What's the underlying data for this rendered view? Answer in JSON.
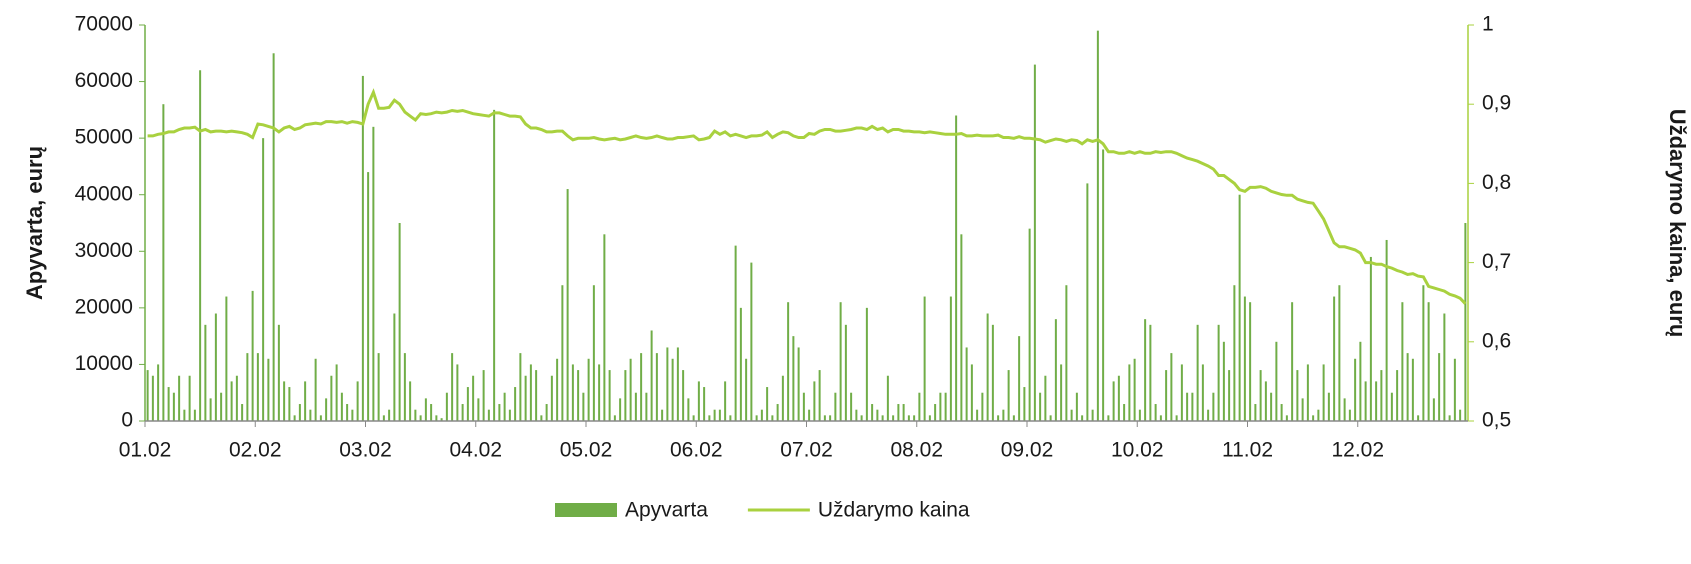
{
  "chart_data": {
    "type": "bar-line",
    "y_label": "Apyvarta, eurų",
    "y2_label": "Uždarymo kaina, eurų",
    "categories": [
      "01.02",
      null,
      null,
      null,
      null,
      null,
      null,
      null,
      null,
      null,
      null,
      null,
      null,
      null,
      null,
      null,
      null,
      null,
      null,
      null,
      null,
      "02.02",
      null,
      null,
      null,
      null,
      null,
      null,
      null,
      null,
      null,
      null,
      null,
      null,
      null,
      null,
      null,
      null,
      null,
      null,
      null,
      null,
      "03.02",
      null,
      null,
      null,
      null,
      null,
      null,
      null,
      null,
      null,
      null,
      null,
      null,
      null,
      null,
      null,
      null,
      null,
      null,
      null,
      null,
      "04.02",
      null,
      null,
      null,
      null,
      null,
      null,
      null,
      null,
      null,
      null,
      null,
      null,
      null,
      null,
      null,
      null,
      null,
      null,
      null,
      null,
      "05.02",
      null,
      null,
      null,
      null,
      null,
      null,
      null,
      null,
      null,
      null,
      null,
      null,
      null,
      null,
      null,
      null,
      null,
      null,
      null,
      null,
      "06.02",
      null,
      null,
      null,
      null,
      null,
      null,
      null,
      null,
      null,
      null,
      null,
      null,
      null,
      null,
      null,
      null,
      null,
      null,
      null,
      null,
      "07.02",
      null,
      null,
      null,
      null,
      null,
      null,
      null,
      null,
      null,
      null,
      null,
      null,
      null,
      null,
      null,
      null,
      null,
      null,
      null,
      null,
      "08.02",
      null,
      null,
      null,
      null,
      null,
      null,
      null,
      null,
      null,
      null,
      null,
      null,
      null,
      null,
      null,
      null,
      null,
      null,
      null,
      null,
      "09.02",
      null,
      null,
      null,
      null,
      null,
      null,
      null,
      null,
      null,
      null,
      null,
      null,
      null,
      null,
      null,
      null,
      null,
      null,
      null,
      null,
      "10.02",
      null,
      null,
      null,
      null,
      null,
      null,
      null,
      null,
      null,
      null,
      null,
      null,
      null,
      null,
      null,
      null,
      null,
      null,
      null,
      null,
      "11.02",
      null,
      null,
      null,
      null,
      null,
      null,
      null,
      null,
      null,
      null,
      null,
      null,
      null,
      null,
      null,
      null,
      null,
      null,
      null,
      null,
      "12.02",
      null,
      null,
      null,
      null,
      null,
      null,
      null,
      null,
      null,
      null,
      null,
      null,
      null,
      null,
      null,
      null,
      null,
      null,
      null,
      null
    ],
    "series": [
      {
        "name": "Apyvarta",
        "type": "bar",
        "color": "#70ad47",
        "values": [
          9000,
          8000,
          10000,
          56000,
          6000,
          5000,
          8000,
          2000,
          8000,
          2000,
          62000,
          17000,
          4000,
          19000,
          5000,
          22000,
          7000,
          8000,
          3000,
          12000,
          23000,
          12000,
          50000,
          11000,
          65000,
          17000,
          7000,
          6000,
          1000,
          3000,
          7000,
          2000,
          11000,
          1000,
          4000,
          8000,
          10000,
          5000,
          3000,
          2000,
          7000,
          61000,
          44000,
          52000,
          12000,
          1000,
          2000,
          19000,
          35000,
          12000,
          7000,
          2000,
          1000,
          4000,
          3000,
          1000,
          500,
          5000,
          12000,
          10000,
          3000,
          6000,
          8000,
          4000,
          9000,
          2000,
          55000,
          3000,
          5000,
          2000,
          6000,
          12000,
          8000,
          10000,
          9000,
          1000,
          3000,
          8000,
          11000,
          24000,
          41000,
          10000,
          9000,
          5000,
          11000,
          24000,
          10000,
          33000,
          9000,
          1000,
          4000,
          9000,
          11000,
          5000,
          12000,
          5000,
          16000,
          12000,
          2000,
          13000,
          11000,
          13000,
          9000,
          4000,
          1000,
          7000,
          6000,
          1000,
          2000,
          2000,
          7000,
          1000,
          31000,
          20000,
          11000,
          28000,
          1000,
          2000,
          6000,
          1000,
          3000,
          8000,
          21000,
          15000,
          13000,
          5000,
          2000,
          7000,
          9000,
          1000,
          1000,
          5000,
          21000,
          17000,
          5000,
          2000,
          1000,
          20000,
          3000,
          2000,
          1000,
          8000,
          1000,
          3000,
          3000,
          1000,
          1000,
          5000,
          22000,
          1000,
          3000,
          5000,
          5000,
          22000,
          54000,
          33000,
          13000,
          10000,
          2000,
          5000,
          19000,
          17000,
          1000,
          2000,
          9000,
          1000,
          15000,
          6000,
          34000,
          63000,
          5000,
          8000,
          1000,
          18000,
          10000,
          24000,
          2000,
          5000,
          1000,
          42000,
          2000,
          69000,
          48000,
          1000,
          7000,
          8000,
          3000,
          10000,
          11000,
          2000,
          18000,
          17000,
          3000,
          1000,
          9000,
          12000,
          1000,
          10000,
          5000,
          5000,
          17000,
          10000,
          2000,
          5000,
          17000,
          14000,
          9000,
          24000,
          40000,
          22000,
          21000,
          3000,
          9000,
          7000,
          5000,
          14000,
          3000,
          1000,
          21000,
          9000,
          4000,
          10000,
          1000,
          2000,
          10000,
          5000,
          22000,
          24000,
          4000,
          2000,
          11000,
          14000,
          7000,
          29000,
          7000,
          9000,
          32000,
          5000,
          9000,
          21000,
          12000,
          11000,
          1000,
          24000,
          21000,
          4000,
          12000,
          19000,
          1000,
          11000,
          2000,
          35000
        ]
      },
      {
        "name": "Uždarymo kaina",
        "type": "line",
        "axis": "y2",
        "color": "#a9d13f",
        "values": [
          0.86,
          0.86,
          0.862,
          0.863,
          0.865,
          0.865,
          0.868,
          0.87,
          0.87,
          0.871,
          0.866,
          0.868,
          0.865,
          0.866,
          0.866,
          0.865,
          0.866,
          0.865,
          0.864,
          0.862,
          0.858,
          0.875,
          0.874,
          0.872,
          0.87,
          0.865,
          0.87,
          0.872,
          0.868,
          0.87,
          0.874,
          0.875,
          0.876,
          0.875,
          0.878,
          0.878,
          0.877,
          0.878,
          0.876,
          0.878,
          0.877,
          0.875,
          0.9,
          0.915,
          0.895,
          0.895,
          0.896,
          0.905,
          0.9,
          0.89,
          0.885,
          0.88,
          0.888,
          0.887,
          0.888,
          0.89,
          0.889,
          0.89,
          0.892,
          0.891,
          0.892,
          0.89,
          0.888,
          0.887,
          0.886,
          0.885,
          0.889,
          0.889,
          0.887,
          0.885,
          0.885,
          0.884,
          0.875,
          0.87,
          0.87,
          0.868,
          0.865,
          0.865,
          0.866,
          0.866,
          0.86,
          0.855,
          0.857,
          0.857,
          0.857,
          0.858,
          0.856,
          0.855,
          0.856,
          0.857,
          0.855,
          0.856,
          0.858,
          0.86,
          0.858,
          0.857,
          0.858,
          0.86,
          0.858,
          0.856,
          0.856,
          0.858,
          0.858,
          0.859,
          0.86,
          0.855,
          0.856,
          0.858,
          0.866,
          0.862,
          0.865,
          0.86,
          0.862,
          0.86,
          0.858,
          0.86,
          0.86,
          0.861,
          0.865,
          0.858,
          0.862,
          0.865,
          0.864,
          0.86,
          0.858,
          0.858,
          0.863,
          0.862,
          0.866,
          0.868,
          0.868,
          0.866,
          0.866,
          0.867,
          0.868,
          0.87,
          0.87,
          0.868,
          0.872,
          0.868,
          0.87,
          0.865,
          0.868,
          0.868,
          0.866,
          0.866,
          0.865,
          0.865,
          0.864,
          0.865,
          0.864,
          0.863,
          0.862,
          0.862,
          0.862,
          0.863,
          0.86,
          0.86,
          0.861,
          0.86,
          0.86,
          0.86,
          0.861,
          0.858,
          0.858,
          0.857,
          0.859,
          0.857,
          0.857,
          0.856,
          0.855,
          0.852,
          0.854,
          0.856,
          0.855,
          0.853,
          0.855,
          0.854,
          0.85,
          0.855,
          0.853,
          0.855,
          0.85,
          0.84,
          0.84,
          0.838,
          0.838,
          0.84,
          0.838,
          0.84,
          0.838,
          0.838,
          0.84,
          0.839,
          0.84,
          0.84,
          0.838,
          0.835,
          0.832,
          0.83,
          0.828,
          0.825,
          0.822,
          0.818,
          0.81,
          0.81,
          0.805,
          0.8,
          0.792,
          0.79,
          0.795,
          0.795,
          0.796,
          0.794,
          0.79,
          0.788,
          0.786,
          0.785,
          0.785,
          0.78,
          0.778,
          0.776,
          0.775,
          0.765,
          0.755,
          0.74,
          0.725,
          0.72,
          0.72,
          0.718,
          0.716,
          0.712,
          0.7,
          0.7,
          0.698,
          0.698,
          0.695,
          0.693,
          0.69,
          0.688,
          0.685,
          0.686,
          0.683,
          0.682,
          0.67,
          0.668,
          0.666,
          0.664,
          0.66,
          0.658,
          0.655,
          0.648
        ]
      }
    ],
    "ylim": [
      0,
      70000
    ],
    "yticks": [
      0,
      10000,
      20000,
      30000,
      40000,
      50000,
      60000,
      70000
    ],
    "y2lim": [
      0.5,
      1
    ],
    "y2ticks": [
      {
        "value": 0.5,
        "label": "0,5"
      },
      {
        "value": 0.6,
        "label": "0,6"
      },
      {
        "value": 0.7,
        "label": "0,7"
      },
      {
        "value": 0.8,
        "label": "0,8"
      },
      {
        "value": 0.9,
        "label": "0,9"
      },
      1
    ],
    "legend": "bottom"
  }
}
